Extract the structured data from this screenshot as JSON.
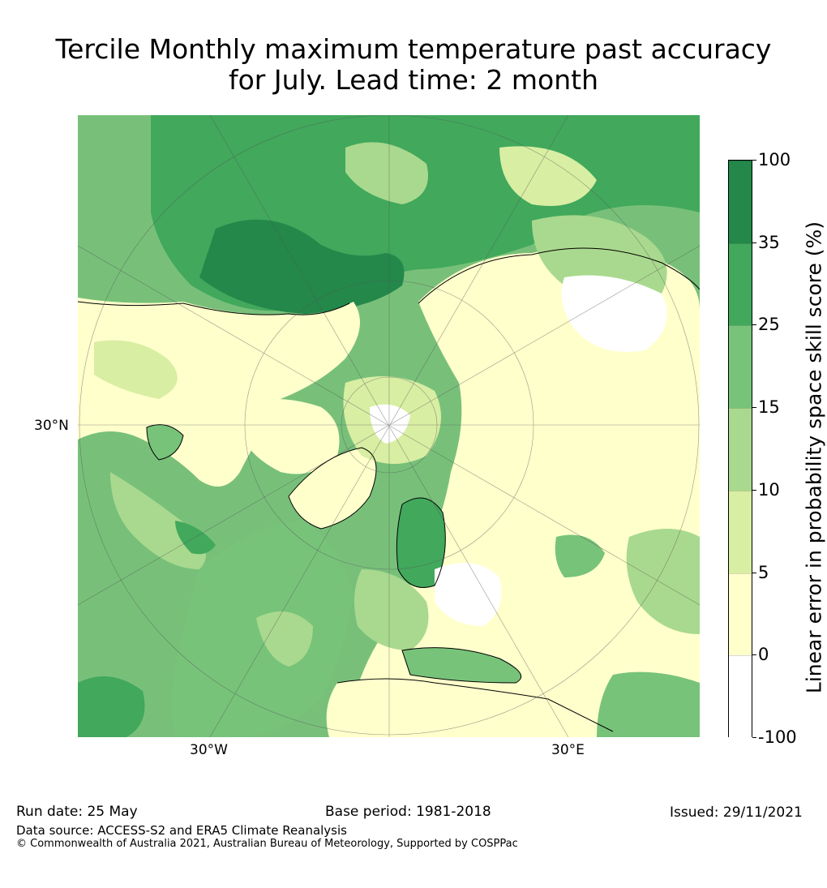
{
  "title_line1": "Tercile Monthly maximum temperature past accuracy",
  "title_line2": "for July. Lead time: 2 month",
  "map": {
    "projection": "north polar stereographic",
    "gridline_labels": {
      "lat_30": "30°N",
      "lon_w30": "30°W",
      "lon_e30": "30°E"
    },
    "ocean_color": "#78c07a"
  },
  "colorbar": {
    "label": "Linear error in probability space skill score (%)",
    "tick_labels": [
      "100",
      "35",
      "25",
      "15",
      "10",
      "5",
      "0",
      "-100"
    ],
    "bins": [
      {
        "from": "35",
        "to": "100",
        "color": "#23884a"
      },
      {
        "from": "25",
        "to": "35",
        "color": "#41a85c"
      },
      {
        "from": "15",
        "to": "25",
        "color": "#77c37a"
      },
      {
        "from": "10",
        "to": "15",
        "color": "#a9d98e"
      },
      {
        "from": "5",
        "to": "10",
        "color": "#d8eea3"
      },
      {
        "from": "0",
        "to": "5",
        "color": "#ffffcc"
      },
      {
        "from": "-100",
        "to": "0",
        "color": "#ffffff"
      }
    ]
  },
  "footer": {
    "run_date": "Run date: 25 May",
    "base_period": "Base period: 1981-2018",
    "issued": "Issued: 29/11/2021",
    "data_source": "Data source: ACCESS-S2 and ERA5 Climate Reanalysis",
    "copyright": "© Commonwealth of Australia 2021, Australian Bureau of Meteorology, Supported by COSPPac"
  }
}
